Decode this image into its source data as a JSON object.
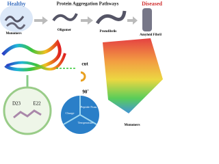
{
  "header": {
    "left_label": "Healthy",
    "title": "Protein Aggregation Pathways",
    "right_label": "Diseased"
  },
  "stages": [
    {
      "label": "Monomers"
    },
    {
      "label": "Oligomer"
    },
    {
      "label": "Protofibrils"
    },
    {
      "label": "Amyloid Fibril"
    }
  ],
  "rotation": {
    "cut": "cut",
    "angle": "90˚"
  },
  "zoom": {
    "residues": [
      "D23",
      "E22"
    ]
  },
  "cycle": {
    "items": [
      "Peptide Num.",
      "Charge",
      "Temperature"
    ]
  },
  "bottom_label": "Monomers"
}
